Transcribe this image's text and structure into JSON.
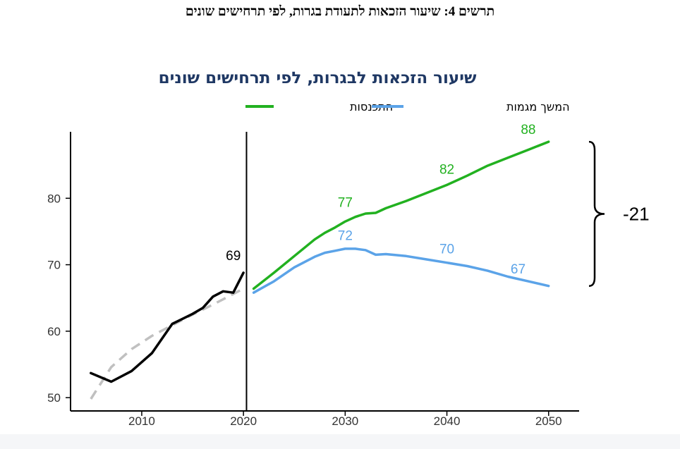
{
  "figure_caption": "תרשים 4: שיעור הזכאות לתעודת בגרות, לפי תרחישים שונים",
  "chart_data": {
    "type": "line",
    "title": "שיעור הזכאות לבגרות, לפי תרחישים שונים",
    "xlabel": "",
    "ylabel": "",
    "xlim": [
      2003,
      2053
    ],
    "ylim": [
      48,
      90
    ],
    "x_ticks": [
      2010,
      2020,
      2030,
      2040,
      2050
    ],
    "y_ticks": [
      50,
      60,
      70,
      80
    ],
    "legend_position": "top",
    "divider_year": 2020.3,
    "bracket_label": "-21",
    "series": [
      {
        "name": "התכנסות",
        "color": "#22b120",
        "style": "solid",
        "legend": true,
        "points": [
          [
            2021,
            66.4
          ],
          [
            2023,
            68.8
          ],
          [
            2025,
            71.3
          ],
          [
            2027,
            73.8
          ],
          [
            2028,
            74.8
          ],
          [
            2029,
            75.6
          ],
          [
            2030,
            76.5
          ],
          [
            2031,
            77.2
          ],
          [
            2032,
            77.7
          ],
          [
            2033,
            77.8
          ],
          [
            2034,
            78.5
          ],
          [
            2036,
            79.6
          ],
          [
            2038,
            80.8
          ],
          [
            2040,
            82.0
          ],
          [
            2042,
            83.4
          ],
          [
            2044,
            84.9
          ],
          [
            2046,
            86.1
          ],
          [
            2048,
            87.3
          ],
          [
            2050,
            88.5
          ]
        ],
        "labels": [
          {
            "x": 2030,
            "y": 77,
            "text": "77"
          },
          {
            "x": 2040,
            "y": 82,
            "text": "82"
          },
          {
            "x": 2048,
            "y": 88,
            "text": "88"
          }
        ]
      },
      {
        "name": "המשך מגמות",
        "color": "#5ba3e8",
        "style": "solid",
        "legend": true,
        "points": [
          [
            2021,
            65.8
          ],
          [
            2023,
            67.5
          ],
          [
            2025,
            69.6
          ],
          [
            2027,
            71.2
          ],
          [
            2028,
            71.8
          ],
          [
            2029,
            72.1
          ],
          [
            2030,
            72.4
          ],
          [
            2031,
            72.4
          ],
          [
            2032,
            72.2
          ],
          [
            2033,
            71.5
          ],
          [
            2034,
            71.6
          ],
          [
            2036,
            71.3
          ],
          [
            2038,
            70.8
          ],
          [
            2040,
            70.3
          ],
          [
            2042,
            69.8
          ],
          [
            2044,
            69.1
          ],
          [
            2046,
            68.2
          ],
          [
            2048,
            67.5
          ],
          [
            2050,
            66.8
          ]
        ],
        "labels": [
          {
            "x": 2030,
            "y": 72,
            "text": "72"
          },
          {
            "x": 2040,
            "y": 70,
            "text": "70"
          },
          {
            "x": 2047,
            "y": 67,
            "text": "67"
          }
        ]
      },
      {
        "name": "",
        "color": "#000000",
        "style": "solid",
        "legend": false,
        "points": [
          [
            2005,
            53.7
          ],
          [
            2007,
            52.4
          ],
          [
            2009,
            54.0
          ],
          [
            2011,
            56.7
          ],
          [
            2013,
            61.1
          ],
          [
            2015,
            62.6
          ],
          [
            2016,
            63.5
          ],
          [
            2017,
            65.2
          ],
          [
            2018,
            66.0
          ],
          [
            2019,
            65.8
          ],
          [
            2020,
            68.8
          ]
        ],
        "labels": [
          {
            "x": 2019,
            "y": 69,
            "text": "69"
          }
        ]
      },
      {
        "name": "",
        "color": "#c0c0c0",
        "style": "dashed",
        "legend": false,
        "points": [
          [
            2005,
            49.8
          ],
          [
            2007,
            54.6
          ],
          [
            2009,
            57.3
          ],
          [
            2011,
            59.3
          ],
          [
            2013,
            60.9
          ],
          [
            2015,
            62.5
          ],
          [
            2017,
            64.0
          ],
          [
            2019,
            65.6
          ],
          [
            2020,
            66.4
          ]
        ],
        "labels": []
      }
    ]
  }
}
